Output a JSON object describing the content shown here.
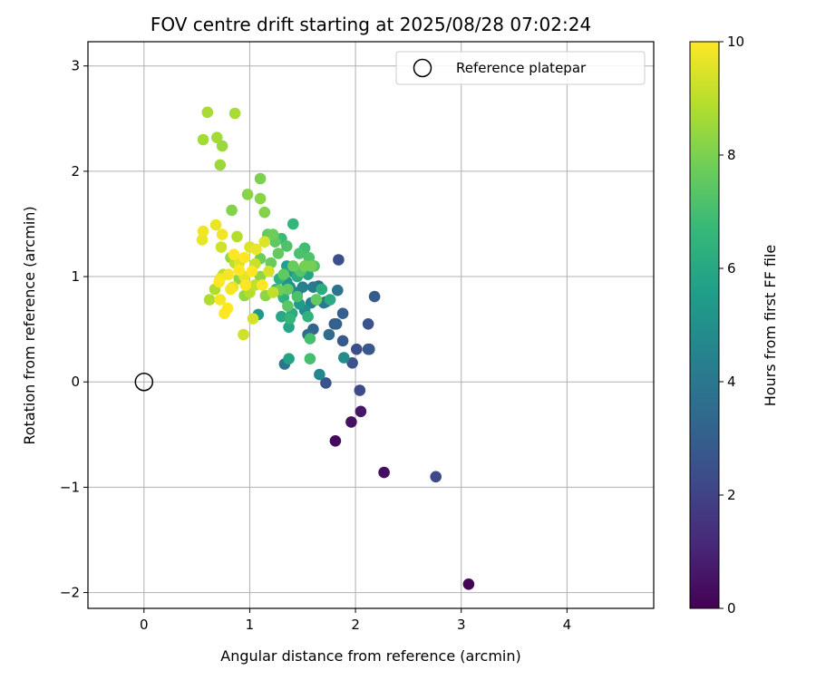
{
  "chart_data": {
    "type": "scatter",
    "title": "FOV centre drift starting at 2025/08/28 07:02:24",
    "xlabel": "Angular distance from reference (arcmin)",
    "ylabel": "Rotation from reference (arcmin)",
    "xlim": [
      -0.53,
      4.82
    ],
    "ylim": [
      -2.15,
      3.23
    ],
    "xticks": [
      0,
      1,
      2,
      3,
      4
    ],
    "yticks": [
      -2,
      -1,
      0,
      1,
      2,
      3
    ],
    "xtick_labels": [
      "0",
      "1",
      "2",
      "3",
      "4"
    ],
    "ytick_labels": [
      "−2",
      "−1",
      "0",
      "1",
      "2",
      "3"
    ],
    "grid": true,
    "legend": {
      "position": "top-right",
      "label": "Reference platepar"
    },
    "reference_point": {
      "x": 0,
      "y": 0
    },
    "colorbar": {
      "label": "Hours from first FF file",
      "range": [
        0,
        10
      ],
      "ticks": [
        0,
        2,
        4,
        6,
        8,
        10
      ],
      "tick_labels": [
        "0",
        "2",
        "4",
        "6",
        "8",
        "10"
      ],
      "colormap": "viridis"
    },
    "series": [
      {
        "points": [
          [
            3.07,
            -1.92,
            0.1
          ],
          [
            1.81,
            -0.56,
            0.3
          ],
          [
            2.27,
            -0.86,
            0.4
          ],
          [
            1.96,
            -0.38,
            0.5
          ],
          [
            2.05,
            -0.28,
            0.6
          ],
          [
            2.76,
            -0.9,
            2.2
          ],
          [
            2.04,
            -0.08,
            2.3
          ],
          [
            1.84,
            1.16,
            2.4
          ],
          [
            1.72,
            -0.01,
            2.6
          ],
          [
            1.97,
            0.18,
            2.5
          ],
          [
            2.12,
            0.31,
            2.6
          ],
          [
            2.13,
            0.31,
            2.7
          ],
          [
            2.01,
            0.31,
            2.4
          ],
          [
            1.88,
            0.39,
            2.8
          ],
          [
            2.12,
            0.55,
            2.6
          ],
          [
            2.18,
            0.81,
            2.9
          ],
          [
            1.88,
            0.65,
            3.0
          ],
          [
            1.8,
            0.55,
            2.8
          ],
          [
            1.82,
            0.55,
            3.1
          ],
          [
            1.6,
            0.5,
            3.2
          ],
          [
            1.55,
            0.45,
            3.4
          ],
          [
            1.75,
            0.45,
            3.5
          ],
          [
            1.83,
            0.87,
            3.8
          ],
          [
            1.65,
            0.91,
            3.5
          ],
          [
            1.72,
            0.76,
            3.6
          ],
          [
            1.33,
            0.17,
            3.9
          ],
          [
            1.66,
            0.07,
            4.6
          ],
          [
            1.89,
            0.23,
            4.8
          ],
          [
            1.7,
            0.75,
            4.0
          ],
          [
            1.6,
            0.9,
            4.2
          ],
          [
            1.5,
            0.9,
            4.4
          ],
          [
            1.45,
            0.85,
            4.5
          ],
          [
            1.58,
            0.75,
            4.3
          ],
          [
            1.63,
            0.78,
            4.7
          ],
          [
            1.52,
            0.68,
            4.9
          ],
          [
            1.38,
            0.9,
            5.0
          ],
          [
            1.35,
            0.95,
            5.2
          ],
          [
            1.42,
            1.04,
            5.3
          ],
          [
            1.47,
            0.74,
            5.4
          ],
          [
            1.3,
            0.85,
            5.5
          ],
          [
            1.08,
            0.64,
            5.3
          ],
          [
            1.37,
            0.22,
            5.8
          ],
          [
            1.37,
            0.52,
            5.9
          ],
          [
            1.3,
            0.62,
            6.0
          ],
          [
            1.4,
            0.65,
            6.1
          ],
          [
            1.35,
            1.1,
            5.7
          ],
          [
            1.55,
            1.02,
            5.8
          ],
          [
            1.45,
            1.0,
            6.2
          ],
          [
            1.28,
            0.98,
            6.3
          ],
          [
            1.32,
            0.8,
            6.4
          ],
          [
            1.55,
            0.62,
            6.5
          ],
          [
            1.68,
            0.88,
            6.2
          ],
          [
            1.76,
            0.78,
            6.1
          ],
          [
            1.38,
            0.6,
            6.6
          ],
          [
            1.41,
            1.5,
            6.6
          ],
          [
            1.25,
            0.88,
            6.7
          ],
          [
            1.3,
            1.36,
            6.8
          ],
          [
            1.52,
            1.27,
            6.9
          ],
          [
            1.57,
            0.22,
            7.0
          ],
          [
            1.57,
            0.41,
            7.0
          ],
          [
            1.45,
            0.81,
            7.1
          ],
          [
            1.56,
            1.18,
            7.2
          ],
          [
            1.47,
            1.22,
            7.1
          ],
          [
            1.35,
            1.29,
            7.2
          ],
          [
            1.61,
            1.1,
            7.3
          ],
          [
            1.36,
            0.72,
            7.4
          ],
          [
            1.48,
            1.05,
            7.3
          ],
          [
            1.24,
            1.33,
            7.5
          ],
          [
            1.32,
            1.02,
            7.5
          ],
          [
            1.36,
            0.88,
            7.6
          ],
          [
            1.17,
            1.4,
            7.6
          ],
          [
            1.27,
            1.22,
            7.6
          ],
          [
            1.2,
            1.13,
            7.7
          ],
          [
            1.41,
            1.1,
            7.7
          ],
          [
            1.22,
            1.4,
            7.8
          ],
          [
            1.1,
            1.17,
            7.8
          ],
          [
            1.52,
            1.1,
            7.9
          ],
          [
            1.63,
            0.78,
            7.6
          ],
          [
            1.58,
            1.1,
            7.9
          ],
          [
            1.28,
            0.87,
            7.8
          ],
          [
            1.1,
            1.93,
            8.0
          ],
          [
            0.83,
            1.63,
            8.1
          ],
          [
            1.14,
            1.61,
            8.1
          ],
          [
            1.1,
            1.74,
            8.2
          ],
          [
            0.98,
            1.78,
            8.2
          ],
          [
            1.1,
            1.0,
            8.3
          ],
          [
            0.9,
            0.98,
            8.3
          ],
          [
            0.95,
            0.82,
            8.4
          ],
          [
            0.82,
            1.18,
            8.4
          ],
          [
            1.15,
            0.82,
            8.3
          ],
          [
            0.72,
            2.06,
            8.5
          ],
          [
            0.74,
            2.24,
            8.5
          ],
          [
            0.69,
            2.32,
            8.6
          ],
          [
            0.56,
            2.3,
            8.6
          ],
          [
            0.6,
            2.56,
            8.7
          ],
          [
            0.86,
            2.55,
            8.7
          ],
          [
            0.62,
            0.78,
            8.8
          ],
          [
            0.67,
            0.88,
            8.8
          ],
          [
            0.88,
            1.38,
            8.9
          ],
          [
            1.0,
            0.85,
            8.9
          ],
          [
            0.75,
            1.02,
            9.0
          ],
          [
            0.86,
            1.13,
            9.0
          ],
          [
            1.05,
            0.92,
            9.1
          ],
          [
            1.22,
            0.85,
            9.1
          ],
          [
            1.05,
            1.12,
            9.2
          ],
          [
            0.94,
            0.45,
            9.3
          ],
          [
            1.03,
            0.6,
            9.4
          ],
          [
            0.73,
            1.28,
            9.3
          ],
          [
            0.9,
            1.13,
            9.5
          ],
          [
            1.18,
            1.05,
            9.4
          ],
          [
            1.0,
            1.28,
            9.5
          ],
          [
            1.14,
            1.33,
            9.5
          ],
          [
            0.84,
            0.9,
            9.6
          ],
          [
            0.95,
            1.0,
            9.6
          ],
          [
            1.06,
            1.26,
            9.7
          ],
          [
            0.55,
            1.35,
            9.7
          ],
          [
            0.56,
            1.43,
            9.8
          ],
          [
            0.68,
            1.49,
            9.7
          ],
          [
            0.74,
            1.4,
            9.8
          ],
          [
            0.72,
            0.98,
            9.8
          ],
          [
            0.8,
            1.02,
            9.9
          ],
          [
            0.82,
            0.88,
            9.9
          ],
          [
            0.72,
            0.78,
            9.9
          ],
          [
            0.76,
            0.65,
            10.0
          ],
          [
            0.79,
            0.7,
            10.0
          ],
          [
            0.9,
            1.06,
            10.0
          ],
          [
            0.96,
            0.92,
            10.0
          ],
          [
            1.02,
            1.05,
            10.0
          ],
          [
            0.85,
            1.21,
            10.0
          ],
          [
            0.95,
            1.18,
            10.0
          ],
          [
            1.12,
            0.92,
            10.0
          ],
          [
            0.71,
            0.95,
            10.0
          ]
        ]
      }
    ]
  }
}
